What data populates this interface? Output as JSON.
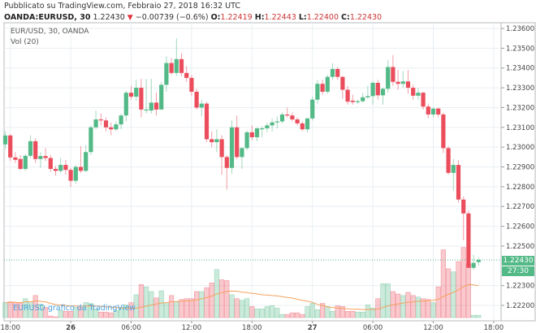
{
  "header": {
    "published": "Pubblicato su TradingView.com, Febbraio 27, 2018 16:32 UTC",
    "symbol": "OANDA:EURUSD, 30",
    "last": "1.22430",
    "change": "−0.00739 (−0.6%)",
    "o_label": "O:",
    "o": "1.22419",
    "h_label": "H:",
    "h": "1.22443",
    "l_label": "L:",
    "l": "1.22400",
    "c_label": "C:",
    "c": "1.22430"
  },
  "legend": {
    "series": "EUR/USD, 30, OANDA",
    "volume": "Vol (20)"
  },
  "watermark": "EURUSD grafico da TradingView",
  "price_tag": "1.22430",
  "countdown": "27:30",
  "colors": {
    "up": "#53b987",
    "down": "#eb4d5c",
    "ma": "#f5a25d",
    "grid": "#e9eef2"
  },
  "chart_data": {
    "type": "candlestick",
    "title": "EUR/USD, 30, OANDA",
    "ylim": [
      1.2216,
      1.2366
    ],
    "y_ticks": [
      "1.23600",
      "1.23500",
      "1.23400",
      "1.23300",
      "1.23200",
      "1.23100",
      "1.23000",
      "1.22900",
      "1.22800",
      "1.22700",
      "1.22600",
      "1.22500",
      "1.22300",
      "1.22200"
    ],
    "x_ticks": [
      {
        "label": "18:00",
        "index": 1
      },
      {
        "label": "26",
        "index": 13
      },
      {
        "label": "06:00",
        "index": 25
      },
      {
        "label": "12:00",
        "index": 37
      },
      {
        "label": "18:00",
        "index": 49
      },
      {
        "label": "27",
        "index": 61
      },
      {
        "label": "06:00",
        "index": 73
      },
      {
        "label": "12:00",
        "index": 85
      },
      {
        "label": "18:00",
        "index": 97
      }
    ],
    "last_price": 1.2243,
    "volume_ma_period": 20,
    "candles": [
      [
        1.23014,
        1.2308,
        1.2299,
        1.23059
      ],
      [
        1.23059,
        1.23065,
        1.2293,
        1.22948
      ],
      [
        1.22948,
        1.22975,
        1.2292,
        1.22936
      ],
      [
        1.2294,
        1.2296,
        1.22885,
        1.2289
      ],
      [
        1.2289,
        1.22965,
        1.2288,
        1.22956
      ],
      [
        1.22956,
        1.2306,
        1.22945,
        1.2303
      ],
      [
        1.2303,
        1.23045,
        1.2292,
        1.2294
      ],
      [
        1.2294,
        1.22975,
        1.22895,
        1.22955
      ],
      [
        1.22955,
        1.22995,
        1.2293,
        1.22945
      ],
      [
        1.22945,
        1.2296,
        1.22875,
        1.2289
      ],
      [
        1.2289,
        1.22905,
        1.22855,
        1.2288
      ],
      [
        1.2288,
        1.22945,
        1.2287,
        1.2291
      ],
      [
        1.2291,
        1.22935,
        1.2286,
        1.22885
      ],
      [
        1.22885,
        1.22895,
        1.228,
        1.2283
      ],
      [
        1.2283,
        1.2291,
        1.22815,
        1.229
      ],
      [
        1.229,
        1.23005,
        1.2287,
        1.2288
      ],
      [
        1.2288,
        1.2301,
        1.22875,
        1.22975
      ],
      [
        1.22975,
        1.2311,
        1.2296,
        1.231
      ],
      [
        1.231,
        1.23185,
        1.2309,
        1.2314
      ],
      [
        1.2314,
        1.2317,
        1.2311,
        1.23135
      ],
      [
        1.23135,
        1.2315,
        1.2308,
        1.231
      ],
      [
        1.231,
        1.23125,
        1.2306,
        1.2309
      ],
      [
        1.2309,
        1.2313,
        1.2308,
        1.23115
      ],
      [
        1.23115,
        1.2317,
        1.2309,
        1.2316
      ],
      [
        1.2316,
        1.23285,
        1.2313,
        1.23275
      ],
      [
        1.23275,
        1.2331,
        1.2324,
        1.23255
      ],
      [
        1.23255,
        1.2334,
        1.23235,
        1.233
      ],
      [
        1.233,
        1.23345,
        1.2315,
        1.2319
      ],
      [
        1.23185,
        1.23345,
        1.2317,
        1.2319
      ],
      [
        1.23185,
        1.23345,
        1.2317,
        1.23225
      ],
      [
        1.23225,
        1.23275,
        1.2316,
        1.2319
      ],
      [
        1.2319,
        1.2333,
        1.2319,
        1.23315
      ],
      [
        1.23315,
        1.2346,
        1.2328,
        1.23425
      ],
      [
        1.23425,
        1.2345,
        1.23365,
        1.23375
      ],
      [
        1.23375,
        1.2355,
        1.2336,
        1.23445
      ],
      [
        1.23445,
        1.23475,
        1.2336,
        1.23375
      ],
      [
        1.23375,
        1.2341,
        1.2333,
        1.2335
      ],
      [
        1.2335,
        1.23365,
        1.2326,
        1.2328
      ],
      [
        1.2328,
        1.23295,
        1.2319,
        1.232
      ],
      [
        1.232,
        1.2324,
        1.23155,
        1.2322
      ],
      [
        1.2322,
        1.2323,
        1.23025,
        1.2304
      ],
      [
        1.2304,
        1.2308,
        1.23,
        1.23025
      ],
      [
        1.23025,
        1.2309,
        1.22975,
        1.2304
      ],
      [
        1.2304,
        1.2306,
        1.2286,
        1.2295
      ],
      [
        1.2295,
        1.2296,
        1.22785,
        1.22895
      ],
      [
        1.22895,
        1.23135,
        1.22865,
        1.231
      ],
      [
        1.231,
        1.2316,
        1.2294,
        1.2295
      ],
      [
        1.2295,
        1.23,
        1.2289,
        1.22995
      ],
      [
        1.22995,
        1.23085,
        1.22985,
        1.23075
      ],
      [
        1.23075,
        1.2311,
        1.23035,
        1.2305
      ],
      [
        1.2305,
        1.231,
        1.2303,
        1.23095
      ],
      [
        1.2309,
        1.23105,
        1.2305,
        1.23095
      ],
      [
        1.23095,
        1.23125,
        1.23075,
        1.2311
      ],
      [
        1.2311,
        1.23145,
        1.2308,
        1.23125
      ],
      [
        1.23125,
        1.23155,
        1.23095,
        1.2313
      ],
      [
        1.2313,
        1.23175,
        1.2312,
        1.23165
      ],
      [
        1.23165,
        1.232,
        1.2315,
        1.2316
      ],
      [
        1.2316,
        1.23175,
        1.2313,
        1.2314
      ],
      [
        1.2314,
        1.2315,
        1.2311,
        1.2312
      ],
      [
        1.2312,
        1.2313,
        1.2308,
        1.2309
      ],
      [
        1.2309,
        1.2315,
        1.23075,
        1.23145
      ],
      [
        1.23145,
        1.23255,
        1.23135,
        1.2324
      ],
      [
        1.2324,
        1.2334,
        1.2322,
        1.2332
      ],
      [
        1.2332,
        1.2334,
        1.23265,
        1.2328
      ],
      [
        1.2328,
        1.23365,
        1.2327,
        1.23355
      ],
      [
        1.23355,
        1.23425,
        1.2334,
        1.23395
      ],
      [
        1.23395,
        1.23405,
        1.2334,
        1.23355
      ],
      [
        1.23355,
        1.2336,
        1.23245,
        1.2329
      ],
      [
        1.2329,
        1.2331,
        1.23215,
        1.2323
      ],
      [
        1.23235,
        1.23265,
        1.23215,
        1.23228
      ],
      [
        1.23228,
        1.2324,
        1.2322,
        1.23232
      ],
      [
        1.23232,
        1.23275,
        1.23225,
        1.23252
      ],
      [
        1.23252,
        1.2331,
        1.23245,
        1.23258
      ],
      [
        1.23258,
        1.23335,
        1.23215,
        1.23325
      ],
      [
        1.23325,
        1.2334,
        1.2324,
        1.23262
      ],
      [
        1.23262,
        1.233,
        1.23215,
        1.23295
      ],
      [
        1.23295,
        1.2344,
        1.23275,
        1.23405
      ],
      [
        1.23405,
        1.23465,
        1.2331,
        1.2333
      ],
      [
        1.2333,
        1.2339,
        1.2329,
        1.2332
      ],
      [
        1.2332,
        1.23385,
        1.233,
        1.23332
      ],
      [
        1.23332,
        1.2339,
        1.2327,
        1.233
      ],
      [
        1.233,
        1.23315,
        1.2324,
        1.2326
      ],
      [
        1.2326,
        1.233,
        1.2324,
        1.23275
      ],
      [
        1.23275,
        1.2328,
        1.2319,
        1.23205
      ],
      [
        1.23205,
        1.2322,
        1.23145,
        1.23165
      ],
      [
        1.23165,
        1.232,
        1.2315,
        1.23195
      ],
      [
        1.23195,
        1.232,
        1.2315,
        1.23165
      ],
      [
        1.23165,
        1.23175,
        1.2297,
        1.22995
      ],
      [
        1.22995,
        1.23005,
        1.2286,
        1.2287
      ],
      [
        1.2287,
        1.2294,
        1.2278,
        1.2291
      ],
      [
        1.2291,
        1.22935,
        1.2272,
        1.22735
      ],
      [
        1.22735,
        1.2275,
        1.2253,
        1.22665
      ],
      [
        1.22665,
        1.2268,
        1.2239,
        1.2239
      ],
      [
        1.2239,
        1.22455,
        1.2238,
        1.22415
      ],
      [
        1.22419,
        1.22443,
        1.224,
        1.2243
      ]
    ],
    "volume": [
      19,
      20,
      19,
      18,
      24,
      20,
      28,
      17,
      13,
      2,
      1,
      9,
      8,
      8,
      13,
      13,
      19,
      18,
      11,
      7,
      7,
      6,
      9,
      13,
      16,
      19,
      29,
      42,
      39,
      33,
      25,
      34,
      19,
      28,
      20,
      23,
      24,
      24,
      33,
      33,
      38,
      44,
      61,
      48,
      47,
      29,
      24,
      22,
      24,
      14,
      11,
      11,
      14,
      15,
      12,
      4,
      4,
      6,
      6,
      4,
      14,
      18,
      10,
      18,
      14,
      8,
      15,
      14,
      8,
      8,
      7,
      7,
      16,
      12,
      24,
      43,
      43,
      33,
      30,
      28,
      32,
      28,
      26,
      24,
      23,
      19,
      39,
      86,
      62,
      58,
      71,
      89,
      68,
      3,
      3
    ]
  }
}
